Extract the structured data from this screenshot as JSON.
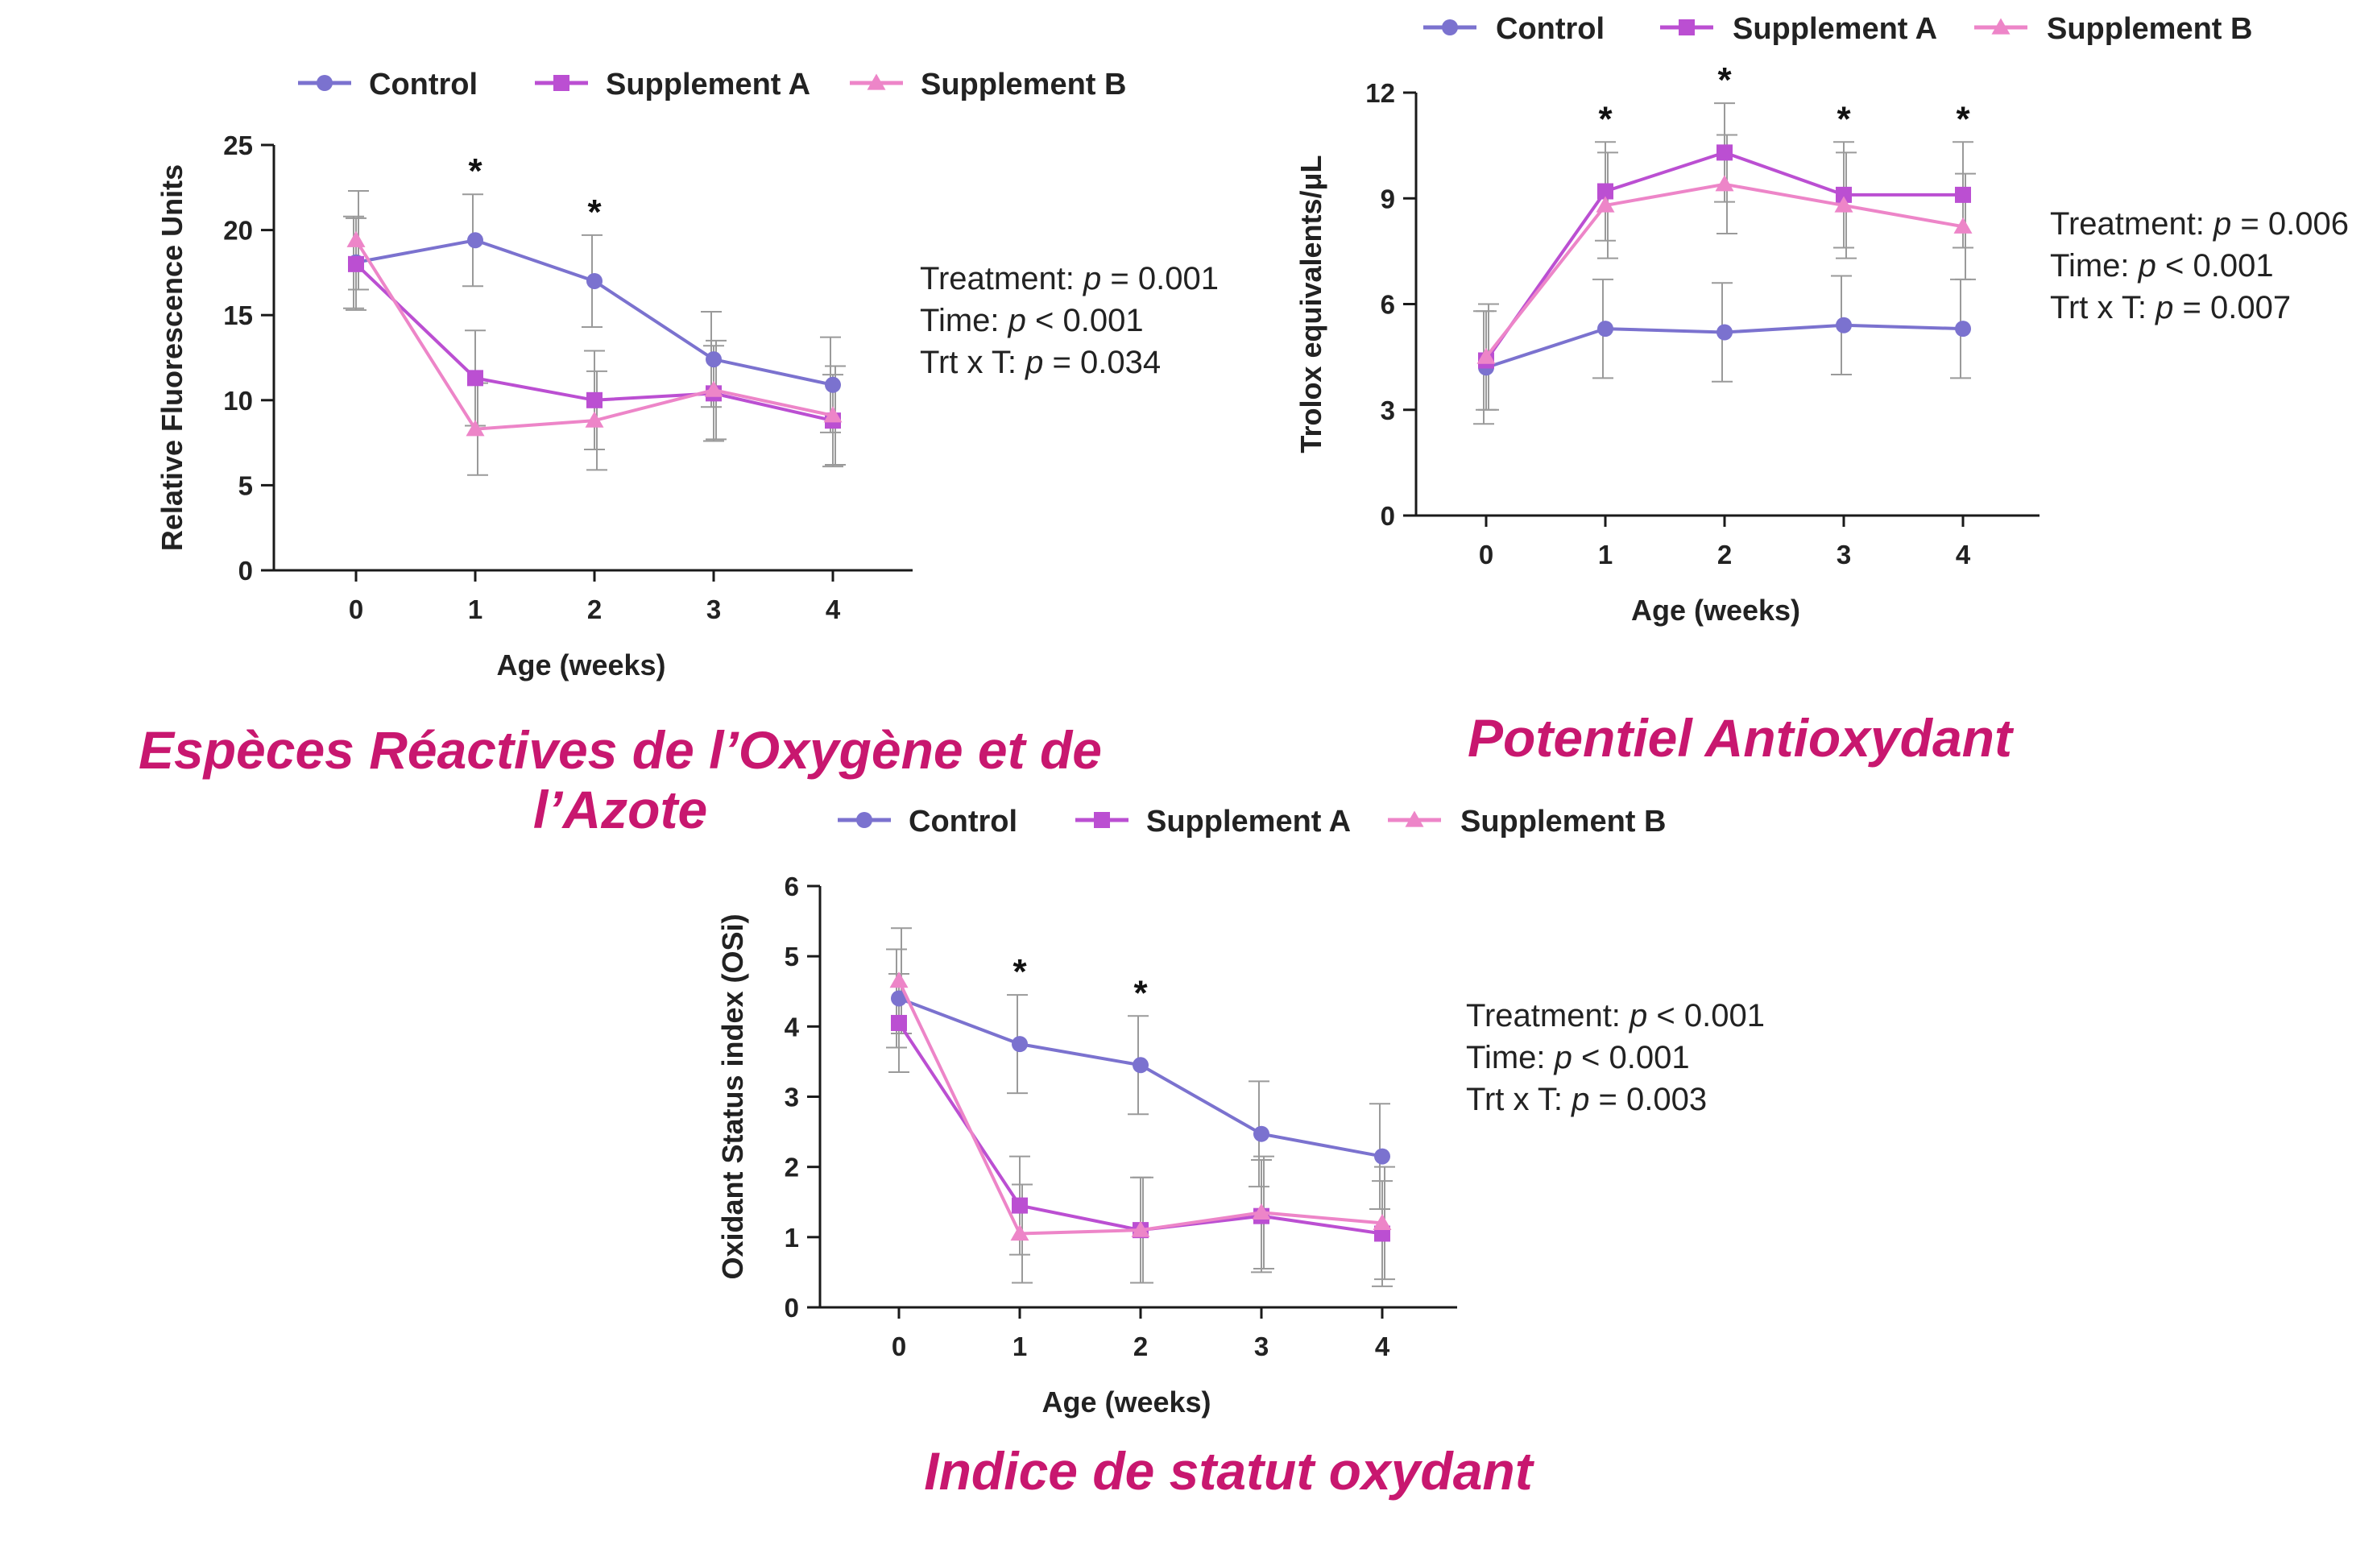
{
  "chart_data": [
    {
      "type": "line",
      "caption": "Espèces Réactives de l’Oxygène et de l’Azote",
      "xlabel": "Age (weeks)",
      "ylabel": "Relative Fluorescence Units",
      "ylim": [
        0,
        25
      ],
      "yticks": [
        "0",
        "5",
        "10",
        "15",
        "20",
        "25"
      ],
      "x": [
        0,
        1,
        2,
        3,
        4
      ],
      "xticks": [
        "0",
        "1",
        "2",
        "3",
        "4"
      ],
      "legend_position": "top",
      "series": [
        {
          "name": "Control",
          "marker": "circle",
          "color": "#7b72cf",
          "values": [
            18.1,
            19.4,
            17.0,
            12.4,
            10.9
          ],
          "errors": [
            2.7,
            2.7,
            2.7,
            2.8,
            2.8
          ]
        },
        {
          "name": "Supplement A",
          "marker": "square",
          "color": "#bb4fd2",
          "values": [
            18.0,
            11.3,
            10.0,
            10.4,
            8.8
          ],
          "errors": [
            2.7,
            2.8,
            2.9,
            2.8,
            2.7
          ]
        },
        {
          "name": "Supplement B",
          "marker": "triangle",
          "color": "#ed85c8",
          "values": [
            19.4,
            8.3,
            8.8,
            10.6,
            9.1
          ],
          "errors": [
            2.9,
            2.7,
            2.9,
            2.9,
            2.9
          ]
        }
      ],
      "significant_x": [
        1,
        2
      ],
      "significance_mark": "*",
      "stats": [
        {
          "label": "Treatment: ",
          "p": "p",
          "value": " = 0.001"
        },
        {
          "label": "Time: ",
          "p": "p",
          "value": " < 0.001"
        },
        {
          "label": "Trt x T: ",
          "p": "p",
          "value": " = 0.034"
        }
      ]
    },
    {
      "type": "line",
      "caption": "Potentiel Antioxydant",
      "xlabel": "Age (weeks)",
      "ylabel": "Trolox equivalents/μL",
      "ylim": [
        0,
        12
      ],
      "yticks": [
        "0",
        "3",
        "6",
        "9",
        "12"
      ],
      "x": [
        0,
        1,
        2,
        3,
        4
      ],
      "xticks": [
        "0",
        "1",
        "2",
        "3",
        "4"
      ],
      "legend_position": "top",
      "series": [
        {
          "name": "Control",
          "marker": "circle",
          "color": "#7b72cf",
          "values": [
            4.2,
            5.3,
            5.2,
            5.4,
            5.3
          ],
          "errors": [
            1.6,
            1.4,
            1.4,
            1.4,
            1.4
          ]
        },
        {
          "name": "Supplement A",
          "marker": "square",
          "color": "#bb4fd2",
          "values": [
            4.4,
            9.2,
            10.3,
            9.1,
            9.1
          ],
          "errors": [
            1.4,
            1.4,
            1.4,
            1.5,
            1.5
          ]
        },
        {
          "name": "Supplement B",
          "marker": "triangle",
          "color": "#ed85c8",
          "values": [
            4.5,
            8.8,
            9.4,
            8.8,
            8.2
          ],
          "errors": [
            1.5,
            1.5,
            1.4,
            1.5,
            1.5
          ]
        }
      ],
      "significant_x": [
        1,
        2,
        3,
        4
      ],
      "significance_mark": "*",
      "stats": [
        {
          "label": "Treatment: ",
          "p": "p",
          "value": " = 0.006"
        },
        {
          "label": "Time: ",
          "p": "p",
          "value": " < 0.001"
        },
        {
          "label": "Trt x T: ",
          "p": "p",
          "value": " = 0.007"
        }
      ]
    },
    {
      "type": "line",
      "caption": "Indice de statut oxydant",
      "xlabel": "Age (weeks)",
      "ylabel": "Oxidant Status index (OSi)",
      "ylim": [
        0,
        6
      ],
      "yticks": [
        "0",
        "1",
        "2",
        "3",
        "4",
        "5",
        "6"
      ],
      "x": [
        0,
        1,
        2,
        3,
        4
      ],
      "xticks": [
        "0",
        "1",
        "2",
        "3",
        "4"
      ],
      "legend_position": "top",
      "series": [
        {
          "name": "Control",
          "marker": "circle",
          "color": "#7b72cf",
          "values": [
            4.4,
            3.75,
            3.45,
            2.47,
            2.15
          ],
          "errors": [
            0.7,
            0.7,
            0.7,
            0.75,
            0.75
          ]
        },
        {
          "name": "Supplement A",
          "marker": "square",
          "color": "#bb4fd2",
          "values": [
            4.05,
            1.45,
            1.1,
            1.3,
            1.05
          ],
          "errors": [
            0.7,
            0.7,
            0.75,
            0.8,
            0.75
          ]
        },
        {
          "name": "Supplement B",
          "marker": "triangle",
          "color": "#ed85c8",
          "values": [
            4.65,
            1.05,
            1.1,
            1.35,
            1.2
          ],
          "errors": [
            0.75,
            0.7,
            0.75,
            0.8,
            0.8
          ]
        }
      ],
      "significant_x": [
        1,
        2
      ],
      "significance_mark": "*",
      "stats": [
        {
          "label": "Treatment: ",
          "p": "p",
          "value": " < 0.001"
        },
        {
          "label": "Time: ",
          "p": "p",
          "value": " < 0.001"
        },
        {
          "label": "Trt x T: ",
          "p": "p",
          "value": " = 0.003"
        }
      ]
    }
  ]
}
